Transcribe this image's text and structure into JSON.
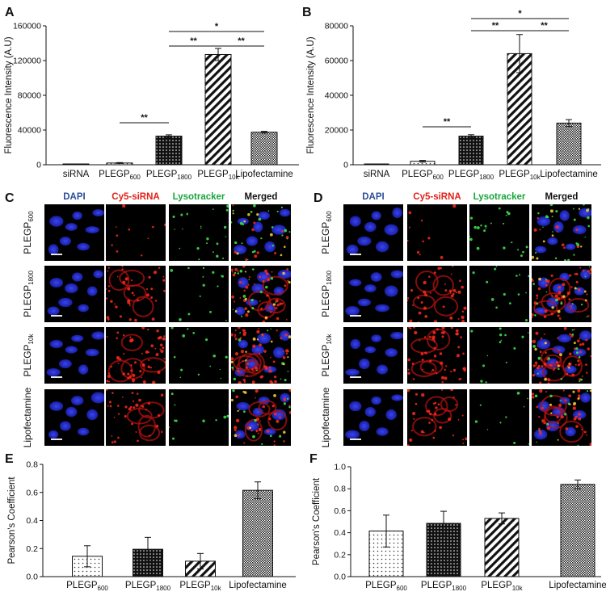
{
  "panel_letters": {
    "A": "A",
    "B": "B",
    "C": "C",
    "D": "D",
    "E": "E",
    "F": "F"
  },
  "micro_headers": {
    "dapi": "DAPI",
    "cy5": "Cy5-siRNA",
    "lyso": "Lysotracker",
    "merged": "Merged"
  },
  "colors": {
    "dapi": "#2b4d9c",
    "cy5": "#e0211a",
    "lyso": "#18a53a",
    "merged": "#111111"
  },
  "row_labels_C": [
    {
      "base": "PLEGP",
      "sub": "600"
    },
    {
      "base": "PLEGP",
      "sub": "1800"
    },
    {
      "base": "PLEGP",
      "sub": "10k"
    },
    {
      "base": "Lipofectamine",
      "sub": ""
    }
  ],
  "row_labels_D": [
    {
      "base": "PLEGP",
      "sub": "600"
    },
    {
      "base": "PLEGP",
      "sub": "1800"
    },
    {
      "base": "PLEGP",
      "sub": "10k"
    },
    {
      "base": "Lipofectamine",
      "sub": ""
    }
  ],
  "chart_data": [
    {
      "panel": "A",
      "type": "bar",
      "ylabel": "Fluorescence Intensity  (A.U)",
      "ylim": [
        0,
        160000
      ],
      "yticks": [
        "0",
        "40000",
        "80000",
        "120000",
        "160000"
      ],
      "categories": [
        {
          "base": "siRNA",
          "sub": ""
        },
        {
          "base": "PLEGP",
          "sub": "600"
        },
        {
          "base": "PLEGP",
          "sub": "1800"
        },
        {
          "base": "PLEGP",
          "sub": "10k"
        },
        {
          "base": "Lipofectamine",
          "sub": ""
        }
      ],
      "values": [
        300,
        2000,
        33000,
        127000,
        37500
      ],
      "errors": [
        200,
        500,
        1500,
        7000,
        1000
      ],
      "patterns": [
        "white",
        "dots_light",
        "dots_dense",
        "diagonal",
        "checker"
      ],
      "significance": [
        {
          "from": 1,
          "to": 2,
          "label": "**",
          "level": 0
        },
        {
          "from": 2,
          "to": 3,
          "label": "**",
          "level": 1
        },
        {
          "from": 3,
          "to": 4,
          "label": "**",
          "level": 1
        },
        {
          "from": 2,
          "to": 4,
          "label": "*",
          "level": 2
        }
      ]
    },
    {
      "panel": "B",
      "type": "bar",
      "ylabel": "Fluorescence Intensity  (A.U)",
      "ylim": [
        0,
        80000
      ],
      "yticks": [
        "0",
        "20000",
        "40000",
        "60000",
        "80000"
      ],
      "categories": [
        {
          "base": "siRNA",
          "sub": ""
        },
        {
          "base": "PLEGP",
          "sub": "600"
        },
        {
          "base": "PLEGP",
          "sub": "1800"
        },
        {
          "base": "PLEGP",
          "sub": "10k"
        },
        {
          "base": "Lipofectamine",
          "sub": ""
        }
      ],
      "values": [
        300,
        2000,
        16500,
        64000,
        24000
      ],
      "errors": [
        150,
        500,
        800,
        11000,
        2000
      ],
      "patterns": [
        "white",
        "dots_light",
        "dots_dense",
        "diagonal",
        "checker"
      ],
      "significance": [
        {
          "from": 1,
          "to": 2,
          "label": "**",
          "level": 0
        },
        {
          "from": 2,
          "to": 3,
          "label": "**",
          "level": 1
        },
        {
          "from": 3,
          "to": 4,
          "label": "**",
          "level": 1
        },
        {
          "from": 2,
          "to": 4,
          "label": "*",
          "level": 2
        }
      ]
    },
    {
      "panel": "E",
      "type": "bar",
      "ylabel": "Pearson's Coefficient",
      "ylim": [
        0,
        0.8
      ],
      "yticks": [
        "0.0",
        "0.2",
        "0.4",
        "0.6",
        "0.8"
      ],
      "categories": [
        {
          "base": "PLEGP",
          "sub": "600"
        },
        {
          "base": "PLEGP",
          "sub": "1800"
        },
        {
          "base": "PLEGP",
          "sub": "10k"
        },
        {
          "base": "Lipofectamine",
          "sub": ""
        }
      ],
      "values": [
        0.145,
        0.195,
        0.11,
        0.615
      ],
      "errors": [
        0.075,
        0.085,
        0.055,
        0.06
      ],
      "patterns": [
        "dots_light",
        "dots_dense",
        "diagonal",
        "checker"
      ],
      "significance": []
    },
    {
      "panel": "F",
      "type": "bar",
      "ylabel": "Pearson's Coefficient",
      "ylim": [
        0,
        1.0
      ],
      "yticks": [
        "0.0",
        "0.2",
        "0.4",
        "0.6",
        "0.8",
        "1.0"
      ],
      "categories": [
        {
          "base": "PLEGP",
          "sub": "600"
        },
        {
          "base": "PLEGP",
          "sub": "1800"
        },
        {
          "base": "PLEGP",
          "sub": "10k"
        },
        {
          "base": "Lipofectamine",
          "sub": ""
        }
      ],
      "values": [
        0.415,
        0.485,
        0.53,
        0.84
      ],
      "errors": [
        0.145,
        0.11,
        0.05,
        0.04
      ],
      "patterns": [
        "dots_light",
        "dots_dense",
        "diagonal",
        "checker"
      ],
      "significance": []
    }
  ]
}
